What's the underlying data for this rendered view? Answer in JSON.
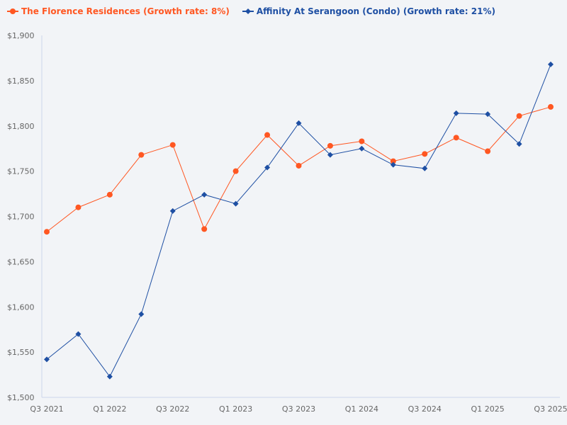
{
  "chart_data": {
    "type": "line",
    "title": "",
    "xlabel": "",
    "ylabel": "",
    "ylim": [
      1500,
      1900
    ],
    "yticks": [
      "$1,500",
      "$1,550",
      "$1,600",
      "$1,650",
      "$1,700",
      "$1,750",
      "$1,800",
      "$1,850",
      "$1,900"
    ],
    "ytick_values": [
      1500,
      1550,
      1600,
      1650,
      1700,
      1750,
      1800,
      1850,
      1900
    ],
    "categories": [
      "Q3 2021",
      "Q4 2021",
      "Q1 2022",
      "Q2 2022",
      "Q3 2022",
      "Q4 2022",
      "Q1 2023",
      "Q2 2023",
      "Q3 2023",
      "Q4 2023",
      "Q1 2024",
      "Q2 2024",
      "Q3 2024",
      "Q4 2024",
      "Q1 2025",
      "Q2 2025",
      "Q3 2025"
    ],
    "xtick_labels": [
      "Q3 2021",
      "Q1 2022",
      "Q3 2022",
      "Q1 2023",
      "Q3 2023",
      "Q1 2024",
      "Q3 2024",
      "Q1 2025",
      "Q3 2025"
    ],
    "grid": false,
    "legend_position": "top-left",
    "series": [
      {
        "name": "The Florence Residences (Growth rate: 8%)",
        "color": "#ff5722",
        "marker": "circle",
        "values": [
          1683,
          1710,
          1724,
          1768,
          1779,
          1686,
          1750,
          1790,
          1756,
          1778,
          1783,
          1761,
          1769,
          1787,
          1772,
          1811,
          1821
        ]
      },
      {
        "name": "Affinity At Serangoon (Condo) (Growth rate: 21%)",
        "color": "#1e4fa3",
        "marker": "diamond",
        "values": [
          1542,
          1570,
          1523,
          1592,
          1706,
          1724,
          1714,
          1754,
          1803,
          1768,
          1775,
          1757,
          1753,
          1814,
          1813,
          1780,
          1868
        ]
      }
    ]
  }
}
